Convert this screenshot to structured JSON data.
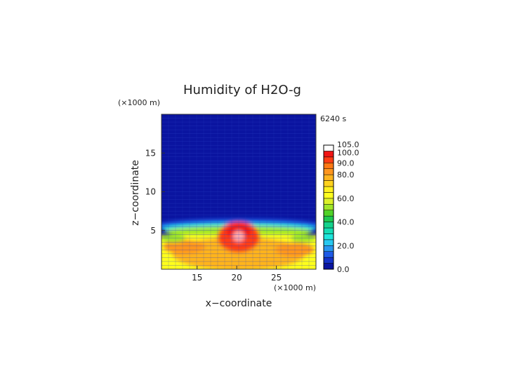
{
  "chart_data": {
    "type": "heatmap",
    "title": "Humidity of H2O-g",
    "time_label": "6240 s",
    "xlabel": "x−coordinate",
    "ylabel": "z−coordinate",
    "x_unit": "(×1000 m)",
    "y_unit": "(×1000 m)",
    "xlim": [
      10.5,
      30
    ],
    "ylim": [
      0,
      20
    ],
    "x_ticks": [
      15,
      20,
      25
    ],
    "y_ticks": [
      5,
      10,
      15
    ],
    "x_tick_labels": [
      "15",
      "20",
      "25"
    ],
    "y_tick_labels": [
      "5",
      "10",
      "15"
    ],
    "colorbar": {
      "levels": [
        0,
        5,
        10,
        15,
        20,
        25,
        30,
        35,
        40,
        45,
        50,
        55,
        60,
        65,
        70,
        75,
        80,
        85,
        90,
        95,
        100,
        105
      ],
      "colors": [
        "#0a14a0",
        "#1432c8",
        "#1e5ae6",
        "#2896f0",
        "#28c8f0",
        "#1ee6dc",
        "#14dcb4",
        "#14d28c",
        "#1ec850",
        "#50d228",
        "#a0e628",
        "#dcf028",
        "#ffff1e",
        "#fff01e",
        "#ffd21e",
        "#ffb41e",
        "#ff961e",
        "#ff7814",
        "#ff3c14",
        "#f01414",
        "#ffffff"
      ],
      "tick_values": [
        0,
        20,
        40,
        60,
        80,
        90,
        100,
        105
      ],
      "tick_labels": [
        "0.0",
        "20.0",
        "40.0",
        "60.0",
        "80.0",
        "90.0",
        "100.0",
        "105.0"
      ]
    },
    "field_description_regions": [
      {
        "z_range": [
          5.5,
          20
        ],
        "value": 2
      },
      {
        "z_range": [
          0,
          4.5
        ],
        "value": 78
      }
    ],
    "grid": true,
    "legend": "right"
  }
}
